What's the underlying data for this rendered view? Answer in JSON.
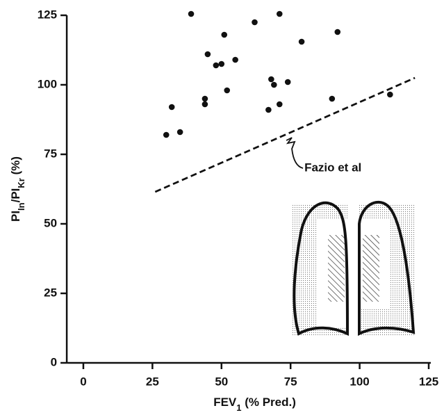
{
  "chart_data": {
    "type": "scatter",
    "xlabel": [
      "FEV",
      "1",
      " (% Pred.)"
    ],
    "ylabel": [
      "PI",
      "In",
      "/PI",
      "Kr",
      " (%)"
    ],
    "xlim": [
      -6,
      125
    ],
    "ylim": [
      0,
      125
    ],
    "xticks": [
      0,
      25,
      50,
      75,
      100,
      125
    ],
    "yticks": [
      0,
      25,
      50,
      75,
      100,
      125
    ],
    "series": [
      {
        "color": "#111111",
        "style": "points",
        "x": [
          39,
          71,
          62,
          51,
          92,
          79,
          45,
          55,
          48,
          50,
          44,
          44,
          52,
          68,
          69,
          74,
          67,
          71,
          90,
          111,
          30,
          32,
          35
        ],
        "values": [
          125.5,
          125.5,
          122.5,
          118,
          119,
          115.5,
          111,
          109,
          107,
          107.5,
          95,
          93,
          98,
          102,
          100,
          101,
          91,
          93,
          95,
          96.5,
          82,
          92,
          83
        ]
      },
      {
        "color": "#111111",
        "style": "dashed",
        "x": [
          26,
          120
        ],
        "values": [
          61.5,
          102.5
        ]
      }
    ],
    "annotation": {
      "text": "Fazio et al",
      "x": 80,
      "y": 70
    }
  }
}
